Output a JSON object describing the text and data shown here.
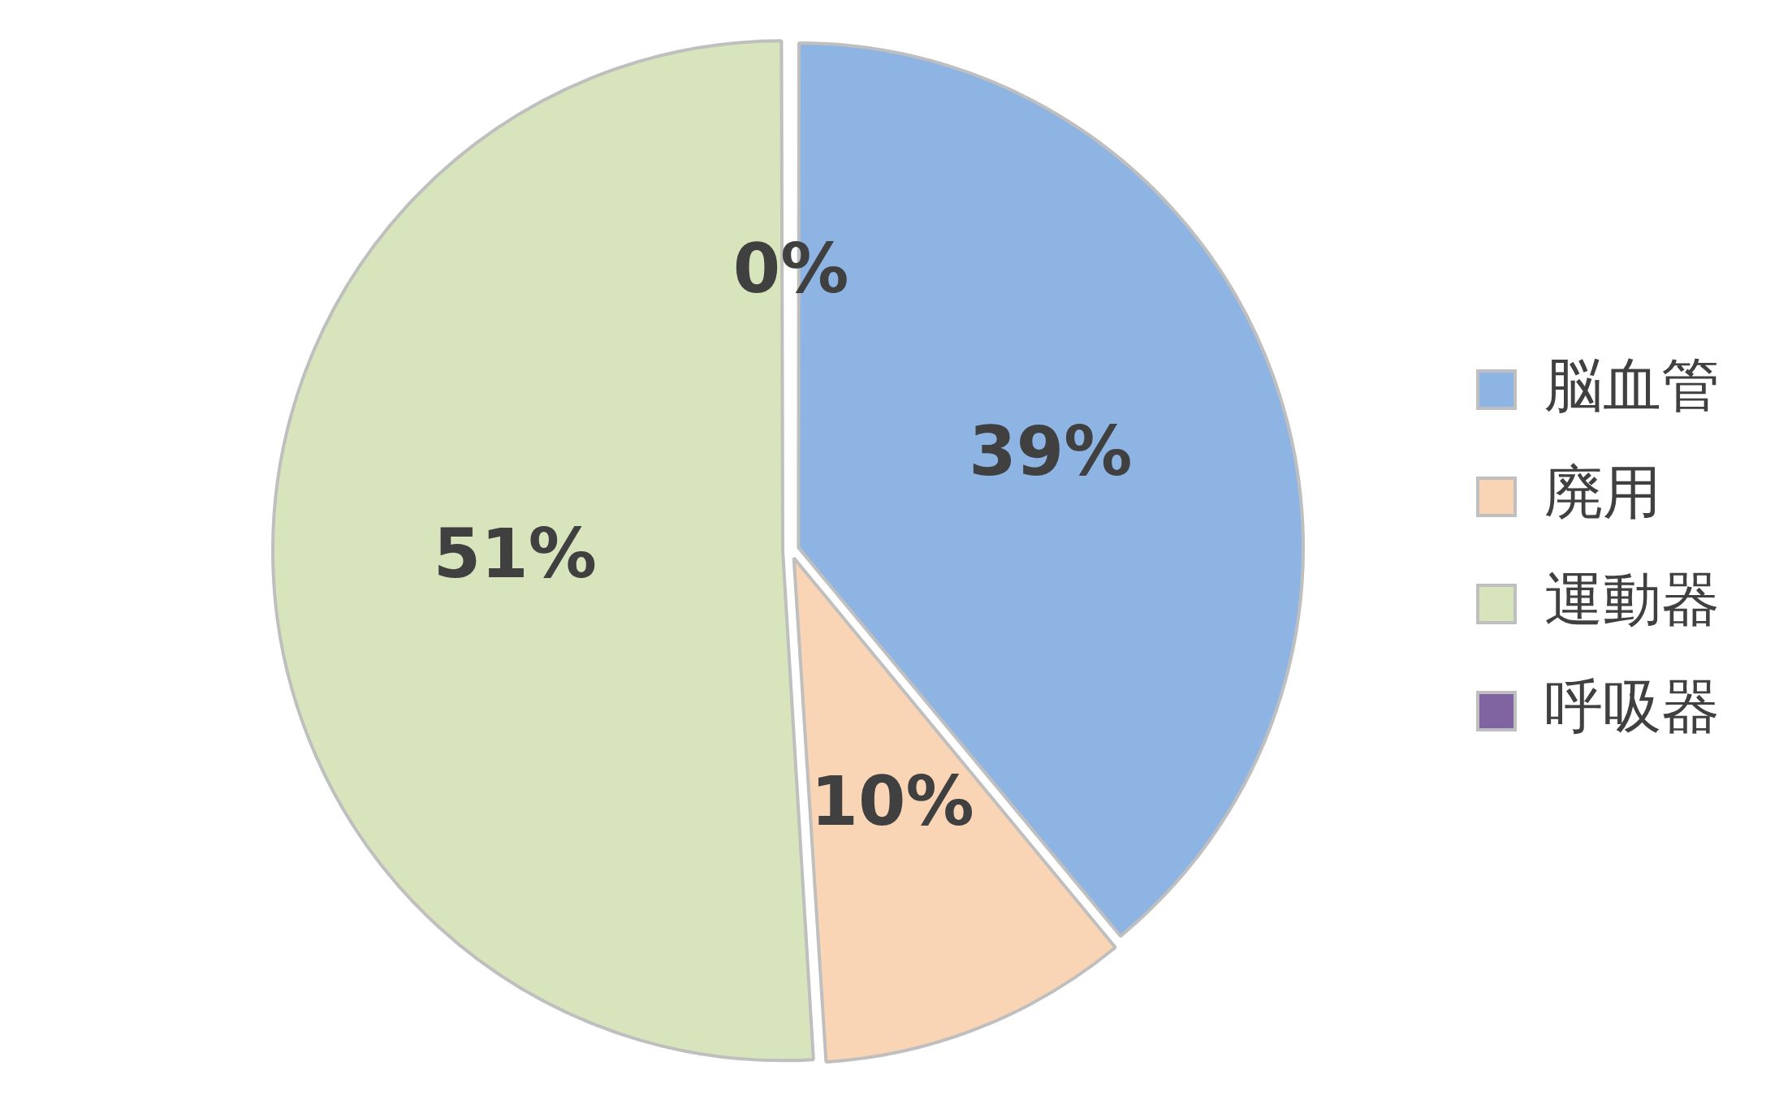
{
  "chart_data": {
    "type": "pie",
    "categories": [
      "脳血管",
      "廃用",
      "運動器",
      "呼吸器"
    ],
    "values": [
      39,
      10,
      51,
      0
    ],
    "colors": [
      "#8eb4e3",
      "#fad5b5",
      "#d8e4bc",
      "#8064a2"
    ],
    "value_labels": [
      "39%",
      "10%",
      "51%",
      "0%"
    ],
    "legend": "right"
  }
}
